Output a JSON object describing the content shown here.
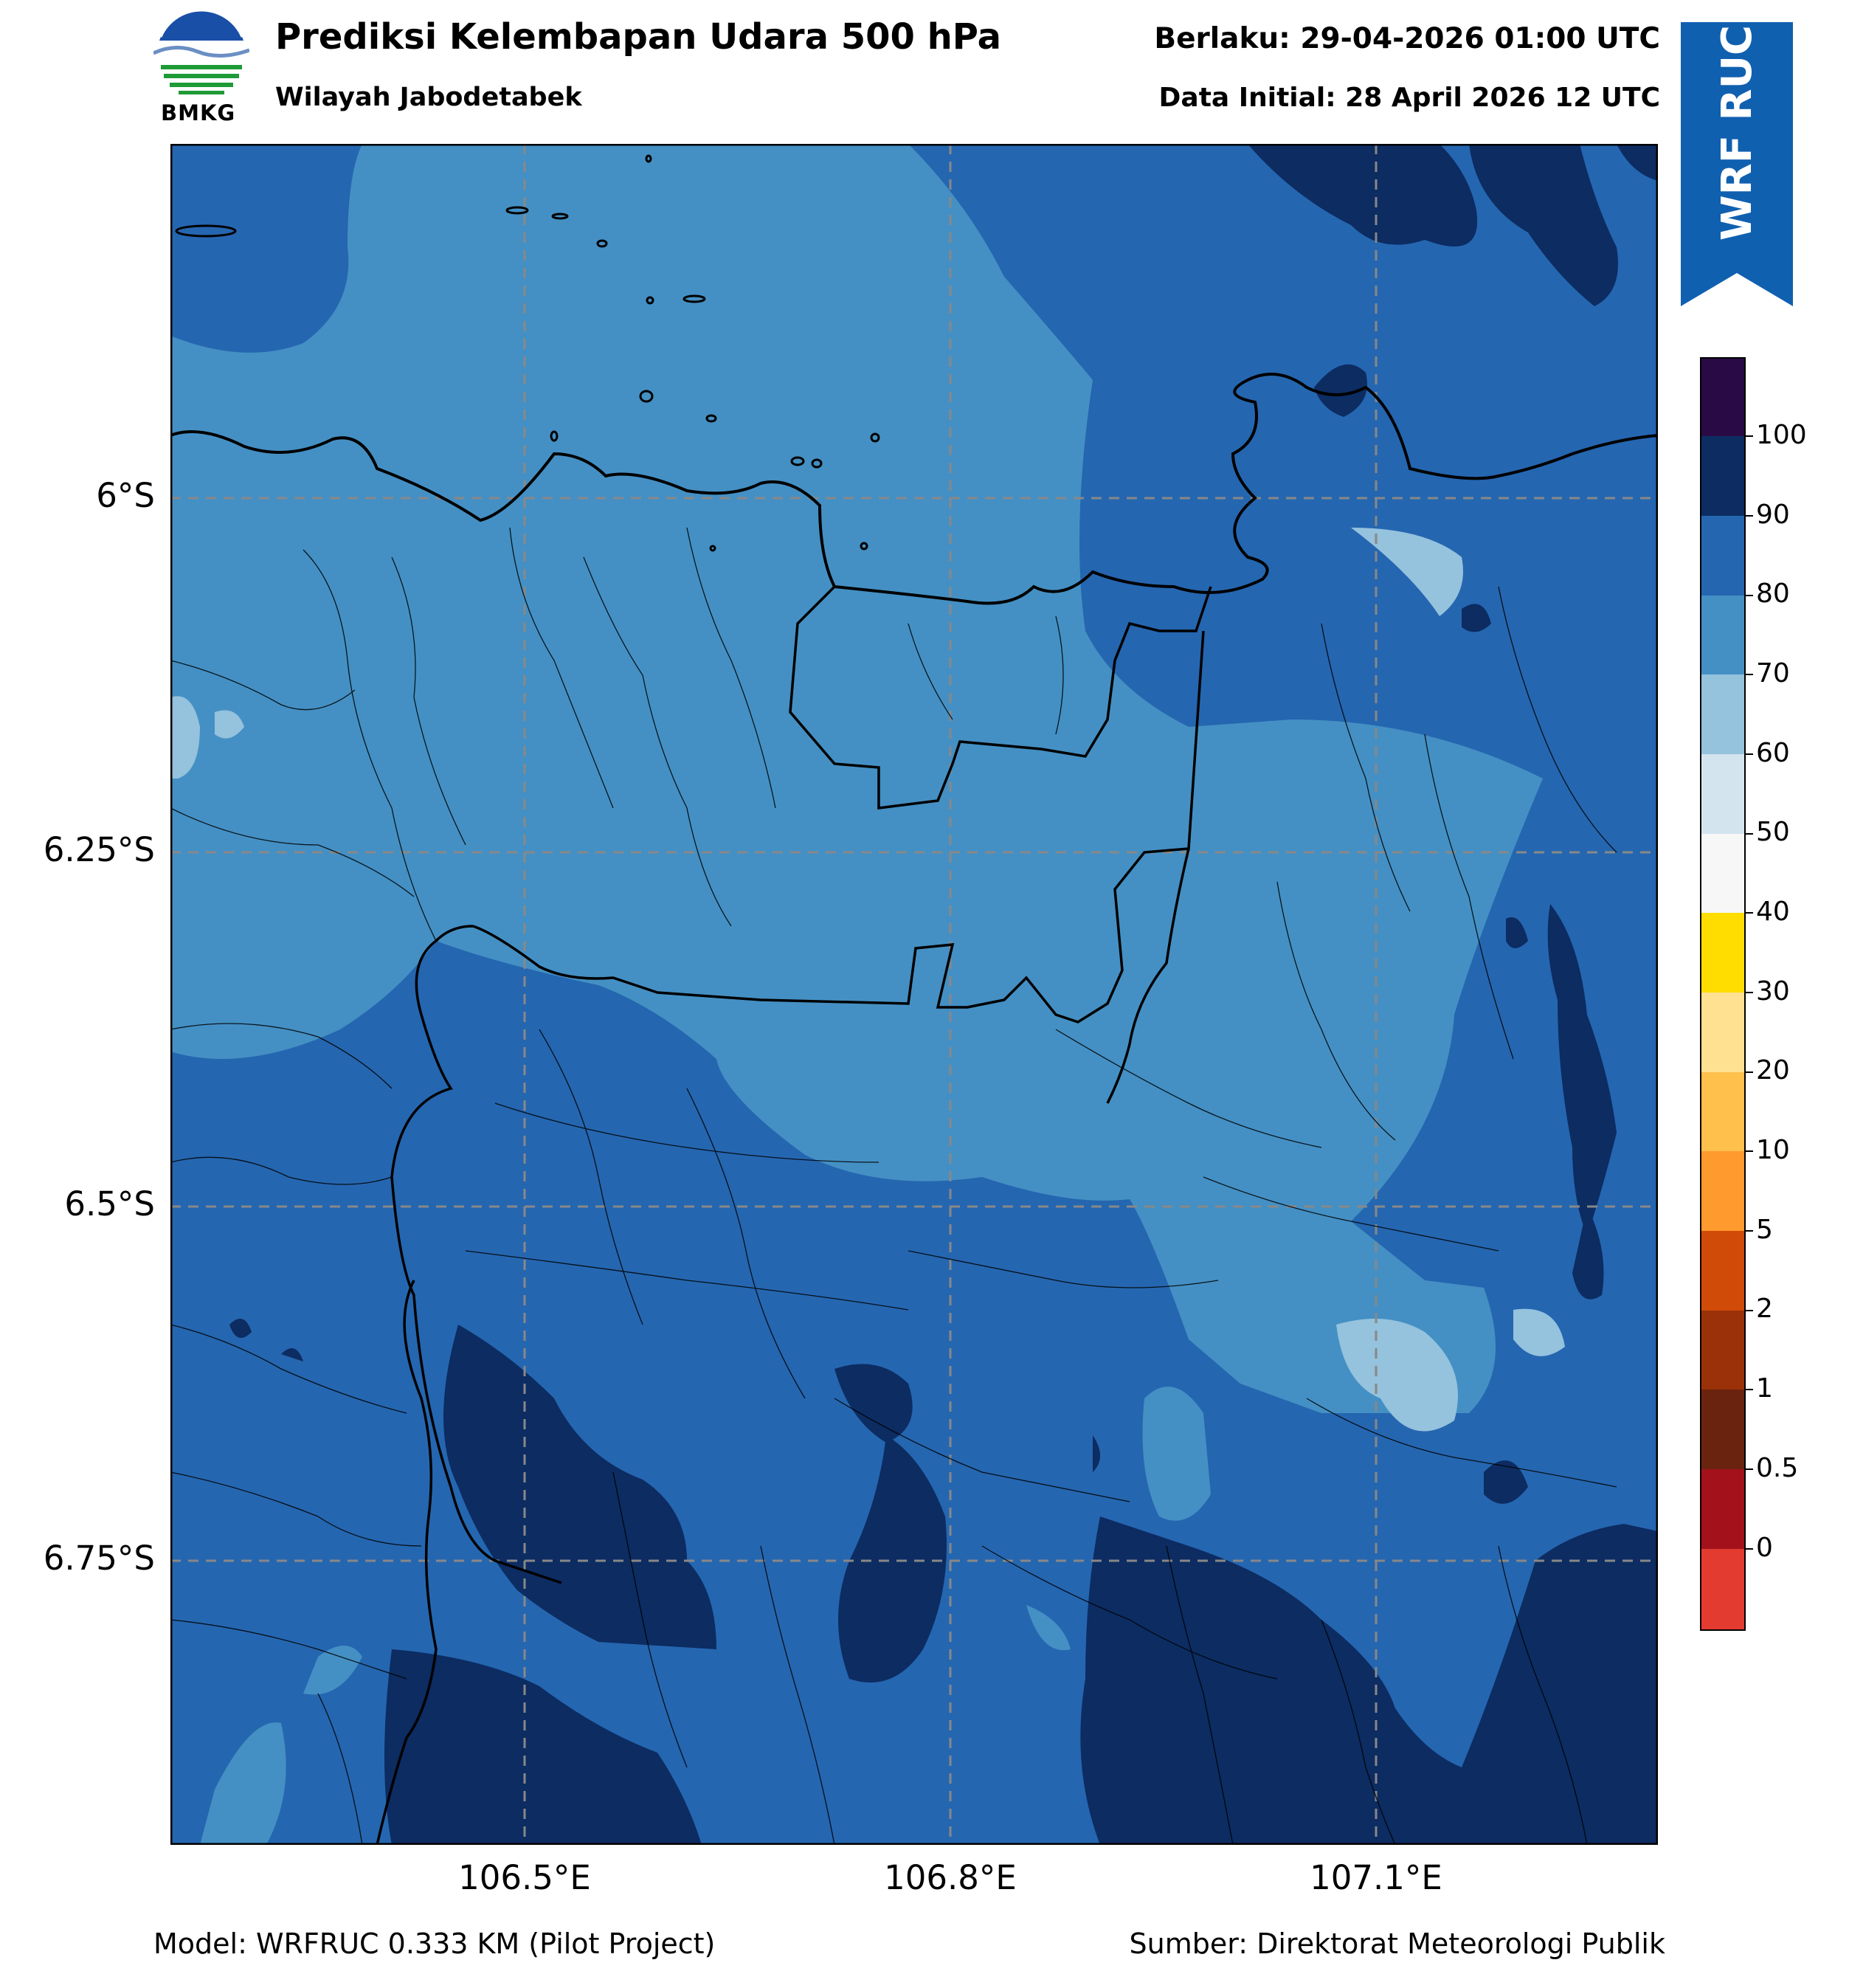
{
  "header": {
    "title": "Prediksi Kelembapan Udara 500 hPa",
    "subtitle": "Wilayah Jabodetabek",
    "valid_time": "Berlaku: 29-04-2026 01:00 UTC",
    "data_initial": "Data Initial: 28 April 2026 12 UTC"
  },
  "logo": {
    "text": "BMKG",
    "icon": "bmkg-logo-icon"
  },
  "ribbon": {
    "text": "WRF RUC",
    "color": "#1060b0"
  },
  "map": {
    "lat_labels": [
      "6°S",
      "6.25°S",
      "6.5°S",
      "6.75°S"
    ],
    "lon_labels": [
      "106.5°E",
      "106.8°E",
      "107.1°E"
    ]
  },
  "colorbar": {
    "labels": [
      "100",
      "90",
      "80",
      "70",
      "60",
      "50",
      "40",
      "30",
      "20",
      "10",
      "5",
      "2",
      "1",
      "0.5",
      "0"
    ],
    "colors_top_to_bottom": [
      "#2a0a45",
      "#0c2c62",
      "#2566b0",
      "#4490c4",
      "#95c2dd",
      "#d3e4ef",
      "#f7f7f7",
      "#ffffff",
      "#ffdd00",
      "#ffe191",
      "#ffc04c",
      "#ff9a2e",
      "#d04b08",
      "#9a3108",
      "#6a230e",
      "#a3111a",
      "#e43b30"
    ]
  },
  "footer": {
    "model": "Model: WRFRUC 0.333 KM (Pilot Project)",
    "source": "Sumber: Direktorat Meteorologi Publik"
  }
}
